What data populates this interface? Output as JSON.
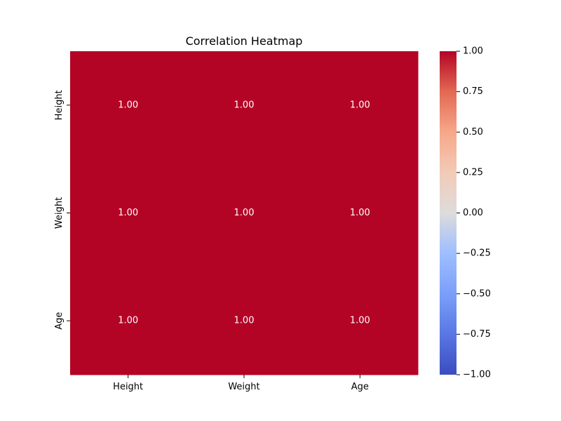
{
  "chart_data": {
    "type": "heatmap",
    "title": "Correlation Heatmap",
    "xlabel": "",
    "ylabel": "",
    "x_categories": [
      "Height",
      "Weight",
      "Age"
    ],
    "y_categories": [
      "Height",
      "Weight",
      "Age"
    ],
    "values": [
      [
        1.0,
        1.0,
        1.0
      ],
      [
        1.0,
        1.0,
        1.0
      ],
      [
        1.0,
        1.0,
        1.0
      ]
    ],
    "cell_labels": [
      [
        "1.00",
        "1.00",
        "1.00"
      ],
      [
        "1.00",
        "1.00",
        "1.00"
      ],
      [
        "1.00",
        "1.00",
        "1.00"
      ]
    ],
    "colormap": "coolwarm",
    "vmin": -1.0,
    "vmax": 1.0,
    "colorbar": {
      "ticks": [
        1.0,
        0.75,
        0.5,
        0.25,
        0.0,
        -0.25,
        -0.5,
        -0.75,
        -1.0
      ],
      "tick_labels": [
        "1.00",
        "0.75",
        "0.50",
        "0.25",
        "0.00",
        "−0.25",
        "−0.50",
        "−0.75",
        "−1.00"
      ],
      "placement": "right"
    },
    "colors": {
      "low": "#3b4cc0",
      "mid": "#dddddd",
      "high": "#b40426",
      "annotation_text": "#ffffff"
    },
    "grid": false
  }
}
